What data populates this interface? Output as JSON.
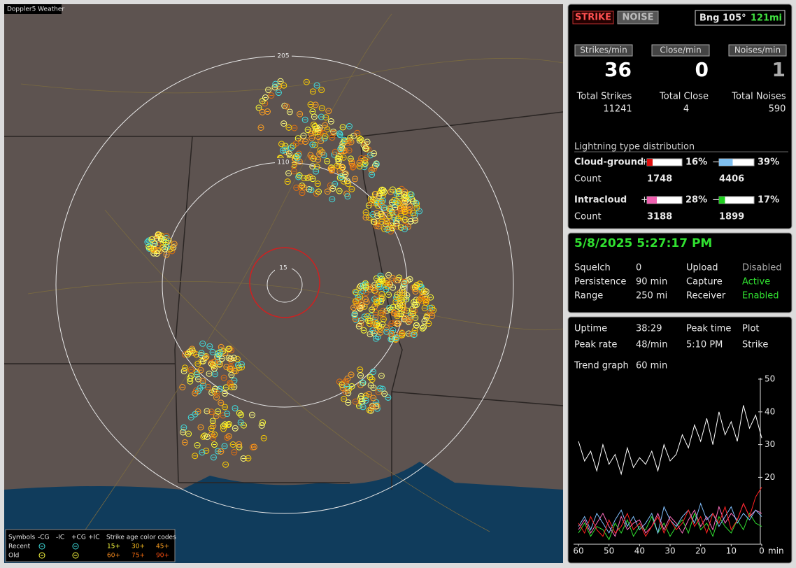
{
  "map": {
    "title": "Doppler5 Weather",
    "rings": [
      "205",
      "110",
      "15"
    ]
  },
  "legend": {
    "symbols": "Symbols",
    "columns": [
      "-CG",
      "-IC",
      "+CG",
      "+IC"
    ],
    "age_title": "Strike age color codes",
    "rows": [
      {
        "label": "Recent",
        "ages": [
          "15+",
          "30+",
          "45+"
        ]
      },
      {
        "label": "Old",
        "ages": [
          "60+",
          "75+",
          "90+"
        ]
      }
    ]
  },
  "counters": {
    "buttons": [
      "STRIKE",
      "NOISE"
    ],
    "bearing": "Bng 105°",
    "distance": "121mi",
    "rates": [
      {
        "label": "Strikes/min",
        "value": "36"
      },
      {
        "label": "Close/min",
        "value": "0"
      },
      {
        "label": "Noises/min",
        "value": "1"
      }
    ],
    "totals": [
      {
        "label": "Total Strikes",
        "value": "11241"
      },
      {
        "label": "Total Close",
        "value": "4"
      },
      {
        "label": "Total Noises",
        "value": "590"
      }
    ]
  },
  "distribution": {
    "title": "Lightning type distribution",
    "rows": [
      {
        "label": "Cloud-ground",
        "plus_sign": "+",
        "plus": {
          "value": 16,
          "label": "16%"
        },
        "minus_sign": "−",
        "minus": {
          "value": 39,
          "label": "39%"
        },
        "count_label": "Count",
        "plus_count": "1748",
        "minus_count": "4406"
      },
      {
        "label": "Intracloud",
        "plus_sign": "+",
        "plus": {
          "value": 28,
          "label": "28%"
        },
        "minus_sign": "−",
        "minus": {
          "value": 17,
          "label": "17%"
        },
        "count_label": "Count",
        "plus_count": "3188",
        "minus_count": "1899"
      }
    ]
  },
  "status": {
    "datetime": "5/8/2025 5:27:17 PM",
    "rows": [
      [
        "Squelch",
        "0",
        "Upload",
        "Disabled"
      ],
      [
        "Persistence",
        "90 min",
        "Capture",
        "Active"
      ],
      [
        "Range",
        "250 mi",
        "Receiver",
        "Enabled"
      ]
    ]
  },
  "stats": {
    "rows": [
      [
        "Uptime",
        "38:29",
        "Peak time",
        "Plot"
      ],
      [
        "Peak rate",
        "48/min",
        "5:10 PM",
        "Strike"
      ],
      [
        "Trend graph",
        "60 min"
      ]
    ]
  },
  "chart_data": {
    "type": "line",
    "xlabel": "min",
    "x": [
      60,
      58,
      56,
      54,
      52,
      50,
      48,
      46,
      44,
      42,
      40,
      38,
      36,
      34,
      32,
      30,
      28,
      26,
      24,
      22,
      20,
      18,
      16,
      14,
      12,
      10,
      8,
      6,
      4,
      2,
      0
    ],
    "xlim": [
      60,
      0
    ],
    "xticks": [
      60,
      50,
      40,
      30,
      20,
      10,
      0
    ],
    "ylim": [
      0,
      50
    ],
    "yticks": [
      20,
      30,
      40,
      50
    ],
    "series": [
      {
        "color": "#ffffff",
        "values": [
          31,
          25,
          28,
          22,
          30,
          24,
          27,
          21,
          29,
          23,
          26,
          24,
          28,
          22,
          30,
          25,
          27,
          33,
          29,
          36,
          31,
          38,
          30,
          40,
          33,
          37,
          31,
          42,
          35,
          39,
          32
        ]
      },
      {
        "color": "#ff2020",
        "values": [
          6,
          3,
          8,
          4,
          2,
          7,
          3,
          5,
          9,
          4,
          6,
          2,
          5,
          8,
          3,
          7,
          4,
          6,
          10,
          5,
          8,
          3,
          9,
          6,
          11,
          4,
          7,
          12,
          8,
          14,
          17
        ]
      },
      {
        "color": "#80c0ff",
        "values": [
          5,
          8,
          4,
          9,
          6,
          3,
          7,
          10,
          5,
          8,
          4,
          6,
          9,
          3,
          11,
          7,
          5,
          8,
          10,
          6,
          12,
          7,
          9,
          5,
          8,
          11,
          6,
          9,
          7,
          10,
          8
        ]
      },
      {
        "color": "#ff70c0",
        "values": [
          4,
          7,
          3,
          6,
          9,
          5,
          2,
          8,
          4,
          6,
          7,
          3,
          5,
          9,
          4,
          8,
          6,
          3,
          7,
          10,
          5,
          8,
          4,
          11,
          6,
          9,
          7,
          12,
          8,
          10,
          9
        ]
      },
      {
        "color": "#30e030",
        "values": [
          3,
          6,
          2,
          5,
          4,
          1,
          6,
          3,
          7,
          2,
          5,
          4,
          8,
          3,
          6,
          2,
          5,
          7,
          3,
          9,
          4,
          6,
          2,
          8,
          5,
          3,
          7,
          4,
          9,
          6,
          5
        ]
      }
    ]
  }
}
